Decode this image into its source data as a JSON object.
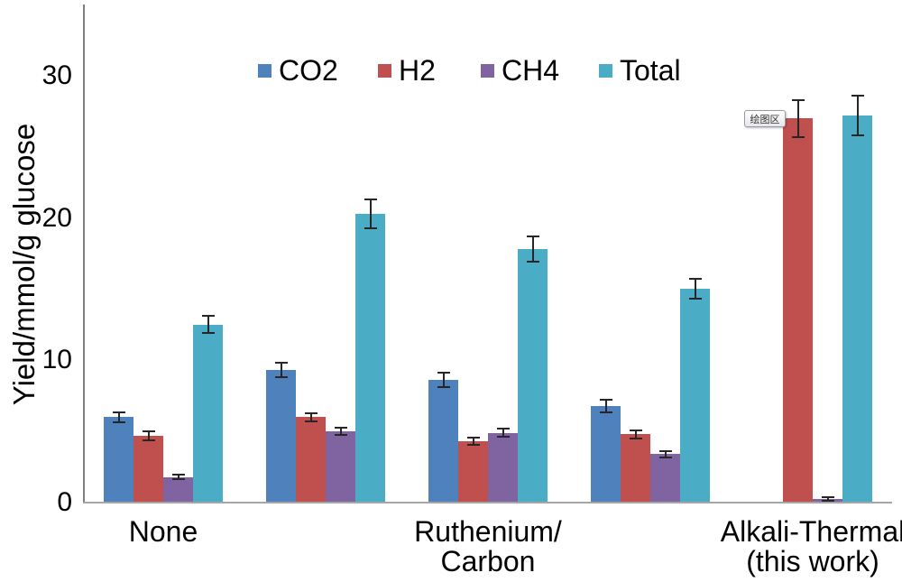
{
  "chart_data": {
    "type": "bar",
    "title": "",
    "xlabel": "",
    "ylabel": "Yield/mmol/g glucose",
    "ylim": [
      0,
      34
    ],
    "yticks": [
      0,
      10,
      20,
      30
    ],
    "grid": false,
    "legend_position": "top-center",
    "error_bars": true,
    "categories": [
      "None",
      "",
      "Ruthenium/\nCarbon",
      "",
      "Alkali-Thermal\n(this work)"
    ],
    "series": [
      {
        "name": "CO2",
        "color": "#4F81BD",
        "values": [
          6.0,
          9.3,
          8.6,
          6.8,
          0
        ],
        "errors": [
          0.35,
          0.5,
          0.5,
          0.45,
          0
        ]
      },
      {
        "name": "H2",
        "color": "#C0504D",
        "values": [
          4.7,
          6.0,
          4.3,
          4.8,
          27.0
        ],
        "errors": [
          0.3,
          0.3,
          0.25,
          0.3,
          1.3
        ]
      },
      {
        "name": "CH4",
        "color": "#8064A2",
        "values": [
          1.8,
          5.0,
          4.9,
          3.4,
          0.25
        ],
        "errors": [
          0.15,
          0.25,
          0.3,
          0.2,
          0.1
        ]
      },
      {
        "name": "Total",
        "color": "#4BACC6",
        "values": [
          12.5,
          20.3,
          17.8,
          15.0,
          27.2
        ],
        "errors": [
          0.6,
          1.0,
          0.9,
          0.7,
          1.4
        ]
      }
    ]
  },
  "plot_area_tooltip": {
    "text": "绘图区"
  },
  "colors": {
    "axis_vertical": "#7f7f7f",
    "axis_horizontal": "#a6a6a6",
    "error_bar": "#262626",
    "background": "#ffffff"
  }
}
